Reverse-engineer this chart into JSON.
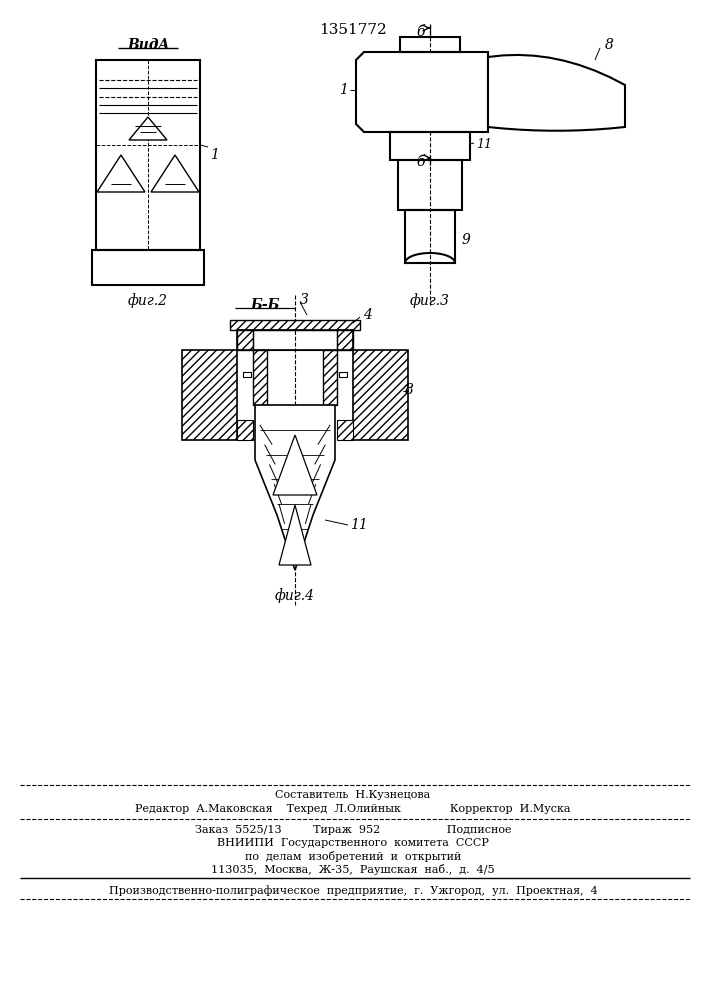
{
  "patent_number": "1351772",
  "bg_color": "#ffffff",
  "line_color": "#000000",
  "fig2_label": "фиг.2",
  "fig3_label": "фиг.3",
  "fig4_label": "фиг.4",
  "vida_label": "ВидA",
  "bb_label": "Б-Б",
  "footer_line1": "Составитель  Н.Кузнецова",
  "footer_line2": "Редактор  А.Маковская    Техред  Л.Олийнык              Корректор  И.Муска",
  "footer_line3": "Заказ  5525/13         Тираж  952                   Подписное",
  "footer_line4": "ВНИИПИ  Государственного  комитета  СССР",
  "footer_line5": "по  делам  изобретений  и  открытий",
  "footer_line6": "113035,  Москва,  Ж-35,  Раушская  наб.,  д.  4/5",
  "footer_line7": "Производственно-полиграфическое  предприятие,  г.  Ужгород,  ул.  Проектная,  4"
}
